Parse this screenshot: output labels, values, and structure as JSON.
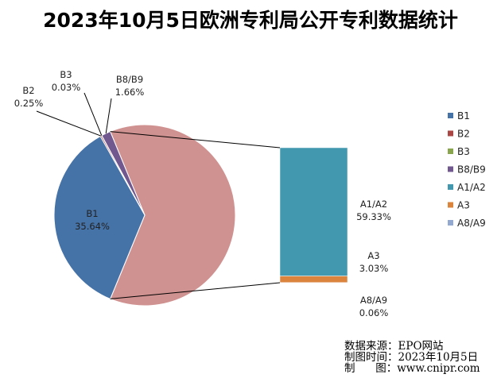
{
  "chart_data": {
    "type": "pie",
    "title": "2023年10月5日欧洲专利局公开专利数据统计",
    "categories": [
      "B1",
      "B2",
      "B3",
      "B8/B9",
      "A1/A2",
      "A3",
      "A8/A9"
    ],
    "series": [
      {
        "values": [
          35.64,
          0.25,
          0.03,
          1.66,
          59.33,
          3.03,
          0.06
        ]
      }
    ],
    "value_labels": [
      "35.64%",
      "0.25%",
      "0.03%",
      "1.66%",
      "59.33%",
      "3.03%",
      "0.06%"
    ],
    "colors": [
      "#4572A7",
      "#AA4643",
      "#89A54E",
      "#71588F",
      "#4198AF",
      "#DB843D",
      "#93A9CF"
    ],
    "pie_slices": [
      "B1",
      "B2",
      "B3",
      "B8/B9"
    ],
    "merged_slice_color": "#D09290",
    "bar_of_pie_stack": [
      "A1/A2",
      "A3",
      "A8/A9"
    ],
    "legend_position": "right"
  },
  "source": {
    "line1": "数据来源：EPO网站",
    "line2": "制图时间：2023年10月5日",
    "line3": "制      图：www.cnipr.com"
  }
}
